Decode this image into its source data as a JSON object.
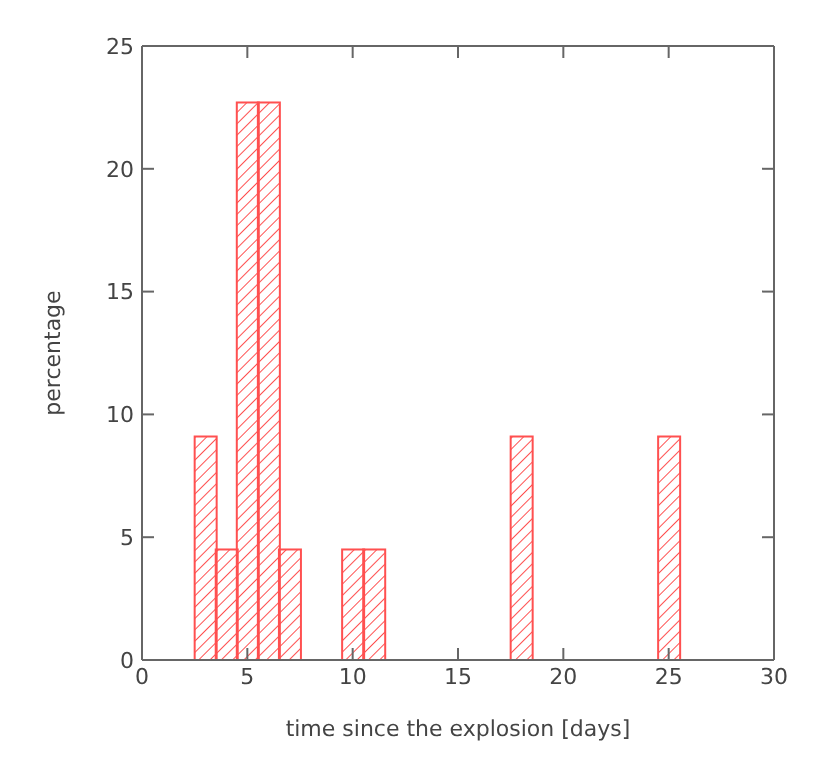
{
  "chart_data": {
    "type": "histogram",
    "xlabel": "time since the explosion [days]",
    "ylabel": "percentage",
    "bins": [
      2.5,
      3.5,
      4.5,
      5.5,
      6.5,
      7.5,
      8.5,
      9.5,
      10.5,
      11.5,
      12.5,
      13.5,
      14.5,
      15.5,
      16.5,
      17.5,
      18.5,
      19.5,
      20.5,
      21.5,
      22.5,
      23.5,
      24.5,
      25.5
    ],
    "values": [
      9.1,
      4.5,
      22.7,
      22.7,
      4.5,
      0,
      0,
      4.5,
      4.5,
      0,
      0,
      0,
      0,
      0,
      0,
      9.1,
      0,
      0,
      0,
      0,
      0,
      0,
      9.1
    ],
    "color": "#ff5050",
    "xlim": [
      0,
      30
    ],
    "xticks": [
      0,
      5,
      10,
      15,
      20,
      25,
      30
    ],
    "ylim": [
      0,
      25
    ],
    "yticks": [
      0,
      5,
      10,
      15,
      20,
      25
    ],
    "grid": false,
    "legend": false
  }
}
